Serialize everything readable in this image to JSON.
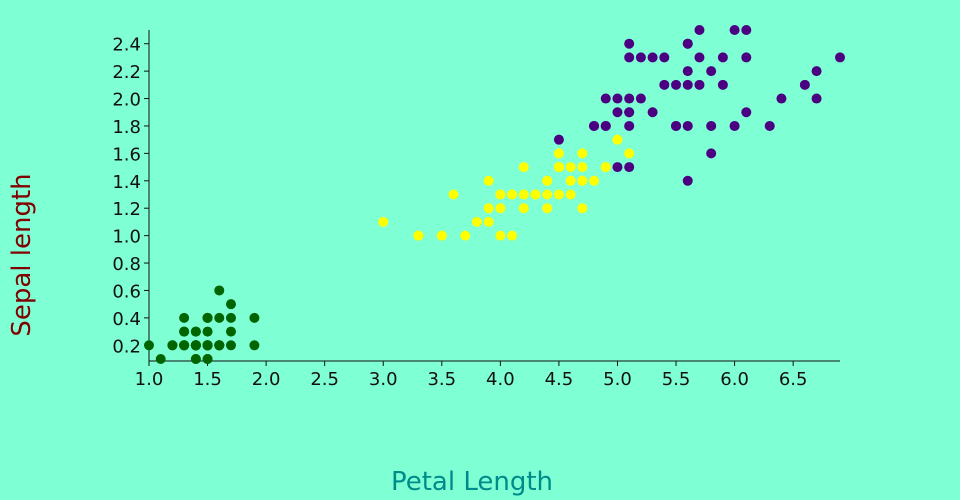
{
  "chart_data": {
    "type": "scatter",
    "x_label": "Petal Length",
    "y_label": "Sepal length",
    "background": "#7fffd4",
    "x_label_color": "#008b8b",
    "y_label_color": "#800000",
    "xlim": [
      1,
      6.9
    ],
    "xticks": [
      {
        "value": 1,
        "label": "1.0"
      },
      1.5,
      {
        "value": 2,
        "label": "2.0"
      },
      2.5,
      {
        "value": 3,
        "label": "3.0"
      },
      3.5,
      {
        "value": 4,
        "label": "4.0"
      },
      4.5,
      {
        "value": 5,
        "label": "5.0"
      },
      5.5,
      {
        "value": 6,
        "label": "6.0"
      },
      6.5
    ],
    "ylim": [
      0.1,
      2.5
    ],
    "yticks": [
      0.2,
      0.4,
      0.6,
      0.8,
      {
        "value": 1,
        "label": "1.0"
      },
      1.2,
      1.4,
      1.6,
      1.8,
      {
        "value": 2,
        "label": "2.0"
      },
      2.2,
      2.4
    ],
    "series": [
      {
        "color": "#006400",
        "x": [
          1.4,
          1.4,
          1.3,
          1.5,
          1.4,
          1.7,
          1.4,
          1.5,
          1.4,
          1.5,
          1.5,
          1.6,
          1.4,
          1.1,
          1.2,
          1.5,
          1.3,
          1.4,
          1.7,
          1.5,
          1.7,
          1.5,
          1.0,
          1.7,
          1.9,
          1.6,
          1.6,
          1.5,
          1.4,
          1.6,
          1.6,
          1.5,
          1.5,
          1.4,
          1.5,
          1.2,
          1.3,
          1.4,
          1.3,
          1.5,
          1.3,
          1.3,
          1.3,
          1.6,
          1.9,
          1.6,
          1.4,
          1.5,
          1.4,
          1.4
        ],
        "y": [
          0.2,
          0.2,
          0.2,
          0.2,
          0.2,
          0.4,
          0.3,
          0.2,
          0.2,
          0.1,
          0.2,
          0.2,
          0.1,
          0.1,
          0.2,
          0.4,
          0.4,
          0.3,
          0.3,
          0.3,
          0.2,
          0.4,
          0.2,
          0.5,
          0.2,
          0.2,
          0.4,
          0.2,
          0.2,
          0.2,
          0.2,
          0.4,
          0.1,
          0.2,
          0.2,
          0.2,
          0.2,
          0.1,
          0.2,
          0.2,
          0.3,
          0.3,
          0.2,
          0.6,
          0.4,
          0.2,
          0.2,
          0.2,
          0.2,
          0.2
        ]
      },
      {
        "color": "#ffff00",
        "x": [
          4.7,
          4.5,
          4.9,
          4.0,
          4.6,
          4.5,
          4.7,
          3.3,
          4.6,
          3.9,
          3.5,
          4.2,
          4.0,
          4.7,
          3.6,
          4.4,
          4.5,
          4.1,
          4.5,
          3.9,
          4.0,
          4.9,
          4.7,
          4.3,
          4.4,
          4.8,
          5.0,
          4.5,
          3.5,
          3.8,
          3.7,
          3.9,
          5.1,
          4.5,
          4.5,
          4.7,
          4.4,
          4.1,
          4.0,
          4.4,
          4.6,
          4.0,
          3.3,
          4.2,
          4.2,
          4.2,
          4.3,
          3.0,
          4.1
        ],
        "y": [
          1.4,
          1.5,
          1.5,
          1.3,
          1.5,
          1.3,
          1.6,
          1.0,
          1.3,
          1.4,
          1.0,
          1.5,
          1.0,
          1.4,
          1.3,
          1.4,
          1.5,
          1.0,
          1.5,
          1.1,
          1.3,
          1.5,
          1.2,
          1.3,
          1.4,
          1.4,
          1.7,
          1.5,
          1.0,
          1.1,
          1.0,
          1.2,
          1.6,
          1.5,
          1.6,
          1.5,
          1.3,
          1.3,
          1.3,
          1.2,
          1.4,
          1.2,
          1.0,
          1.3,
          1.2,
          1.3,
          1.3,
          1.1,
          1.3
        ]
      },
      {
        "color": "#4b0082",
        "x": [
          6.0,
          5.1,
          5.9,
          5.6,
          5.8,
          6.6,
          4.5,
          6.3,
          5.8,
          6.1,
          5.1,
          5.3,
          5.5,
          5.0,
          5.1,
          5.3,
          5.5,
          6.7,
          6.9,
          5.0,
          5.7,
          4.9,
          6.7,
          4.9,
          5.7,
          6.0,
          4.8,
          4.9,
          5.6,
          5.8,
          6.1,
          6.4,
          5.6,
          5.1,
          5.6,
          6.1,
          5.6,
          5.5,
          4.8,
          5.4,
          5.6,
          5.1,
          5.1,
          5.9,
          5.7,
          5.2,
          5.0,
          5.2,
          5.4,
          5.1
        ],
        "y": [
          2.5,
          1.9,
          2.1,
          1.8,
          2.2,
          2.1,
          1.7,
          1.8,
          1.8,
          2.5,
          2.0,
          1.9,
          2.1,
          2.0,
          2.4,
          2.3,
          1.8,
          2.2,
          2.3,
          1.5,
          2.3,
          2.0,
          2.0,
          1.8,
          2.1,
          1.8,
          1.8,
          1.8,
          2.1,
          1.6,
          1.9,
          2.0,
          2.2,
          1.5,
          1.4,
          2.3,
          2.4,
          1.8,
          1.8,
          2.1,
          2.4,
          2.3,
          1.9,
          2.3,
          2.5,
          2.3,
          1.9,
          2.0,
          2.3,
          1.8
        ]
      }
    ]
  }
}
